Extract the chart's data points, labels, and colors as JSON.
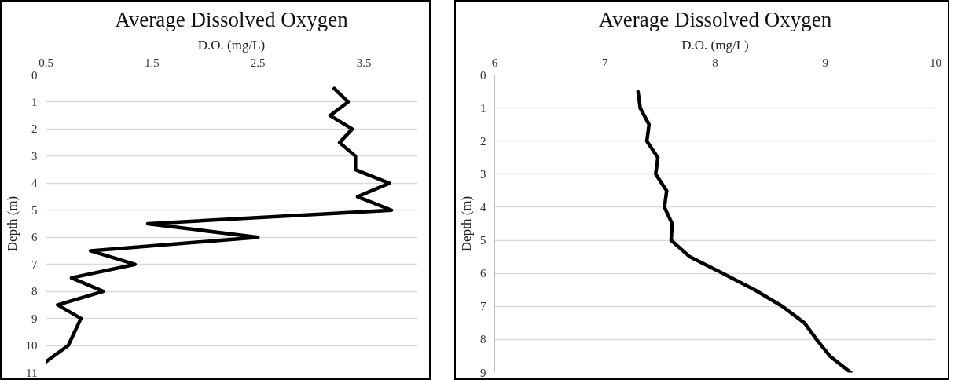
{
  "chart_data": [
    {
      "type": "line",
      "title": "Average Dissolved Oxygen",
      "xlabel": "D.O. (mg/L)",
      "ylabel": "Depth (m)",
      "xlim": [
        0.5,
        4.0
      ],
      "xticks": [
        0.5,
        1.5,
        2.5,
        3.5
      ],
      "ylim": [
        11,
        0
      ],
      "yticks": [
        0,
        1,
        2,
        3,
        4,
        5,
        6,
        7,
        8,
        9,
        10,
        11
      ],
      "grid": "y",
      "line_style": "solid",
      "series": [
        {
          "color": "#000000",
          "x": [
            3.22,
            3.35,
            3.18,
            3.39,
            3.27,
            3.42,
            3.42,
            3.74,
            3.44,
            3.76,
            1.46,
            2.5,
            0.92,
            1.34,
            0.74,
            1.04,
            0.61,
            0.83,
            0.71,
            0.5
          ],
          "values": [
            0.5,
            1,
            1.5,
            2,
            2.5,
            3,
            3.5,
            4,
            4.5,
            5,
            5.5,
            6,
            6.5,
            7,
            7.5,
            8,
            8.5,
            9,
            10,
            10.6
          ]
        }
      ]
    },
    {
      "type": "line",
      "title": "Average Dissolved Oxygen",
      "xlabel": "D.O. (mg/L)",
      "ylabel": "Depth (m)",
      "xlim": [
        6,
        10
      ],
      "xticks": [
        6,
        7,
        8,
        9,
        10
      ],
      "ylim": [
        9,
        0
      ],
      "yticks": [
        0,
        1,
        2,
        3,
        4,
        5,
        6,
        7,
        8,
        9
      ],
      "grid": "y",
      "line_style": "solid",
      "series": [
        {
          "color": "#000000",
          "x": [
            7.3,
            7.32,
            7.4,
            7.38,
            7.48,
            7.46,
            7.56,
            7.54,
            7.61,
            7.6,
            7.77,
            8.07,
            8.36,
            8.61,
            8.81,
            8.92,
            9.04,
            9.23
          ],
          "values": [
            0.5,
            1,
            1.5,
            2,
            2.5,
            3,
            3.5,
            4,
            4.5,
            5,
            5.5,
            6,
            6.5,
            7,
            7.5,
            8,
            8.5,
            9
          ]
        }
      ]
    }
  ]
}
